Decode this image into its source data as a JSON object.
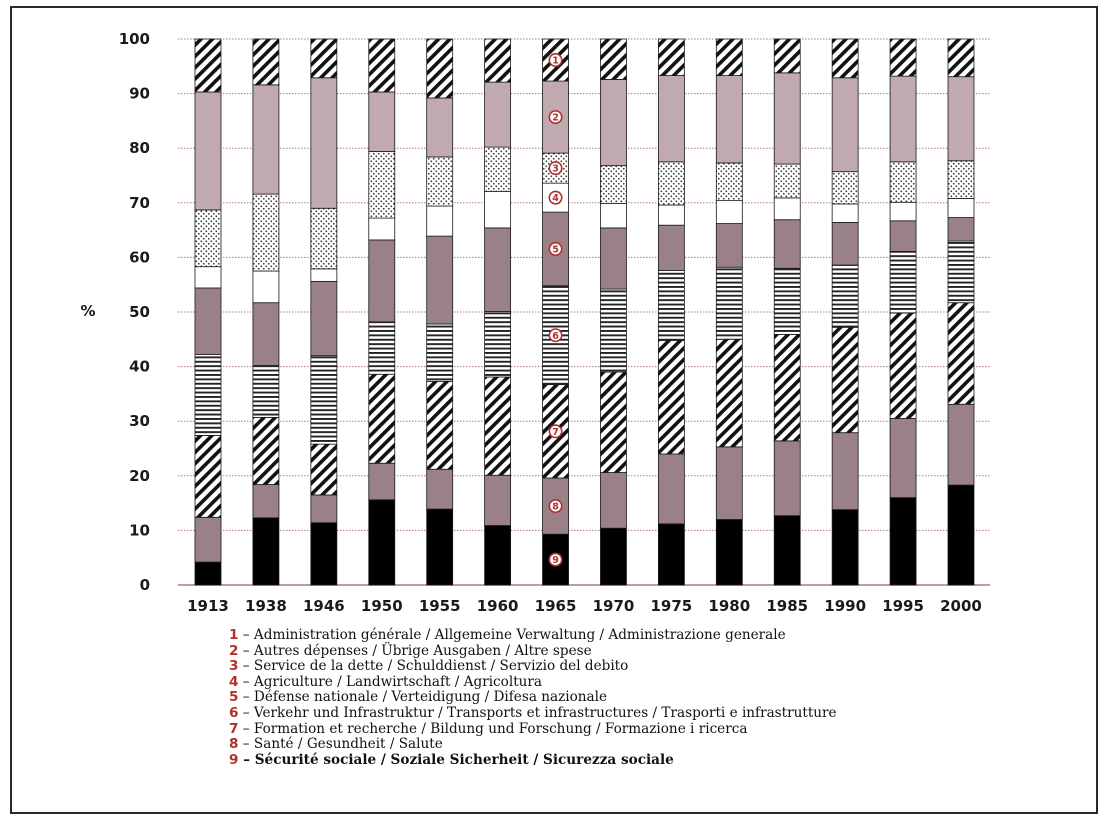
{
  "chart_data": {
    "type": "bar",
    "stacked": true,
    "ylabel": "%",
    "ylim": [
      0,
      100
    ],
    "yticks": [
      "0",
      "10",
      "20",
      "30",
      "40",
      "50",
      "60",
      "70",
      "80",
      "90",
      "100"
    ],
    "grid": true,
    "categories": [
      "1913",
      "1938",
      "1946",
      "1950",
      "1955",
      "1960",
      "1965",
      "1970",
      "1975",
      "1980",
      "1985",
      "1990",
      "1995",
      "2000"
    ],
    "series": [
      {
        "number": "9",
        "name": "Sécurité sociale / Soziale Sicherheit / Sicurezza sociale",
        "fill": "#000000",
        "values": [
          4.2,
          12.3,
          11.4,
          15.6,
          13.9,
          10.9,
          9.3,
          10.4,
          11.2,
          12.0,
          12.7,
          13.8,
          16.0,
          18.3
        ]
      },
      {
        "number": "8",
        "name": "Santé / Gesundheit / Salute",
        "fill": "#9a8087",
        "values": [
          8.2,
          6.1,
          5.1,
          6.7,
          7.3,
          9.2,
          10.3,
          10.2,
          12.8,
          13.3,
          13.7,
          14.1,
          14.5,
          14.8
        ]
      },
      {
        "number": "7",
        "name": "Formation et recherche / Bildung und Forschung / Formazione i ricerca",
        "fill": "diag",
        "values": [
          15.0,
          12.3,
          9.3,
          16.3,
          16.1,
          18.0,
          17.1,
          18.4,
          20.8,
          19.7,
          19.5,
          19.3,
          19.3,
          18.6
        ]
      },
      {
        "number": "6",
        "name": "Verkehr und Infrastruktur / Transports et infrastructures / Trasporti e infrastrutture",
        "fill": "hstripe",
        "values": [
          14.8,
          9.5,
          16.2,
          9.6,
          10.5,
          12.0,
          18.1,
          15.2,
          12.8,
          13.2,
          12.1,
          11.4,
          11.3,
          11.3
        ]
      },
      {
        "number": "5",
        "name": "Défense nationale / Verteidigung / Difesa nazionale",
        "fill": "#9a8087",
        "values": [
          12.2,
          11.5,
          13.6,
          15.0,
          16.1,
          15.3,
          13.5,
          11.2,
          8.3,
          8.0,
          8.9,
          7.8,
          5.6,
          4.3
        ]
      },
      {
        "number": "4",
        "name": "Agriculture / Landwirtschaft / Agricoltura",
        "fill": "#ffffff",
        "values": [
          3.9,
          5.8,
          2.3,
          4.0,
          5.5,
          6.7,
          5.3,
          4.5,
          3.7,
          4.2,
          4.0,
          3.4,
          3.4,
          3.5
        ]
      },
      {
        "number": "3",
        "name": "Service de la dette / Schulddienst / Servizio del debito",
        "fill": "dots",
        "values": [
          10.4,
          14.1,
          11.1,
          12.2,
          9.0,
          8.1,
          5.5,
          6.9,
          7.9,
          6.9,
          6.2,
          5.9,
          7.4,
          6.9
        ]
      },
      {
        "number": "2",
        "name": "Autres dépenses / Übrige Ausgaben / Altre spese",
        "fill": "#c0a9af",
        "values": [
          21.6,
          20.0,
          23.9,
          10.9,
          10.8,
          11.9,
          13.2,
          15.8,
          15.8,
          16.0,
          16.7,
          17.2,
          15.7,
          15.4
        ]
      },
      {
        "number": "1",
        "name": "Administration générale / Allgemeine Verwaltung / Administrazione generale",
        "fill": "diag",
        "values": [
          9.7,
          8.4,
          7.1,
          9.7,
          10.8,
          7.8,
          7.7,
          7.4,
          6.7,
          6.7,
          6.7,
          7.1,
          6.8,
          6.9
        ]
      }
    ],
    "series_marker_column": "1965"
  },
  "legend": [
    {
      "num": "1",
      "sep": " – ",
      "text": "Administration générale / Allgemeine Verwaltung / Administrazione generale"
    },
    {
      "num": "2",
      "sep": " – ",
      "text": "Autres dépenses / Übrige Ausgaben / Altre spese"
    },
    {
      "num": "3",
      "sep": " – ",
      "text": "Service de la dette / Schulddienst / Servizio del debito"
    },
    {
      "num": "4",
      "sep": " – ",
      "text": "Agriculture / Landwirtschaft / Agricoltura"
    },
    {
      "num": "5",
      "sep": " – ",
      "text": "Défense nationale / Verteidigung / Difesa nazionale"
    },
    {
      "num": "6",
      "sep": " – ",
      "text": "Verkehr und Infrastruktur / Transports et infrastructures / Trasporti e infrastrutture"
    },
    {
      "num": "7",
      "sep": " – ",
      "text": "Formation et recherche / Bildung und Forschung / Formazione i ricerca"
    },
    {
      "num": "8",
      "sep": " – ",
      "text": "Santé / Gesundheit / Salute"
    },
    {
      "num": "9",
      "sep": " – ",
      "text": "Sécurité sociale / Soziale Sicherheit / Sicurezza sociale"
    }
  ],
  "colors": {
    "accent": "#b0302c",
    "grid": "#b07a7a",
    "bar_outline": "#1a1a1a"
  }
}
